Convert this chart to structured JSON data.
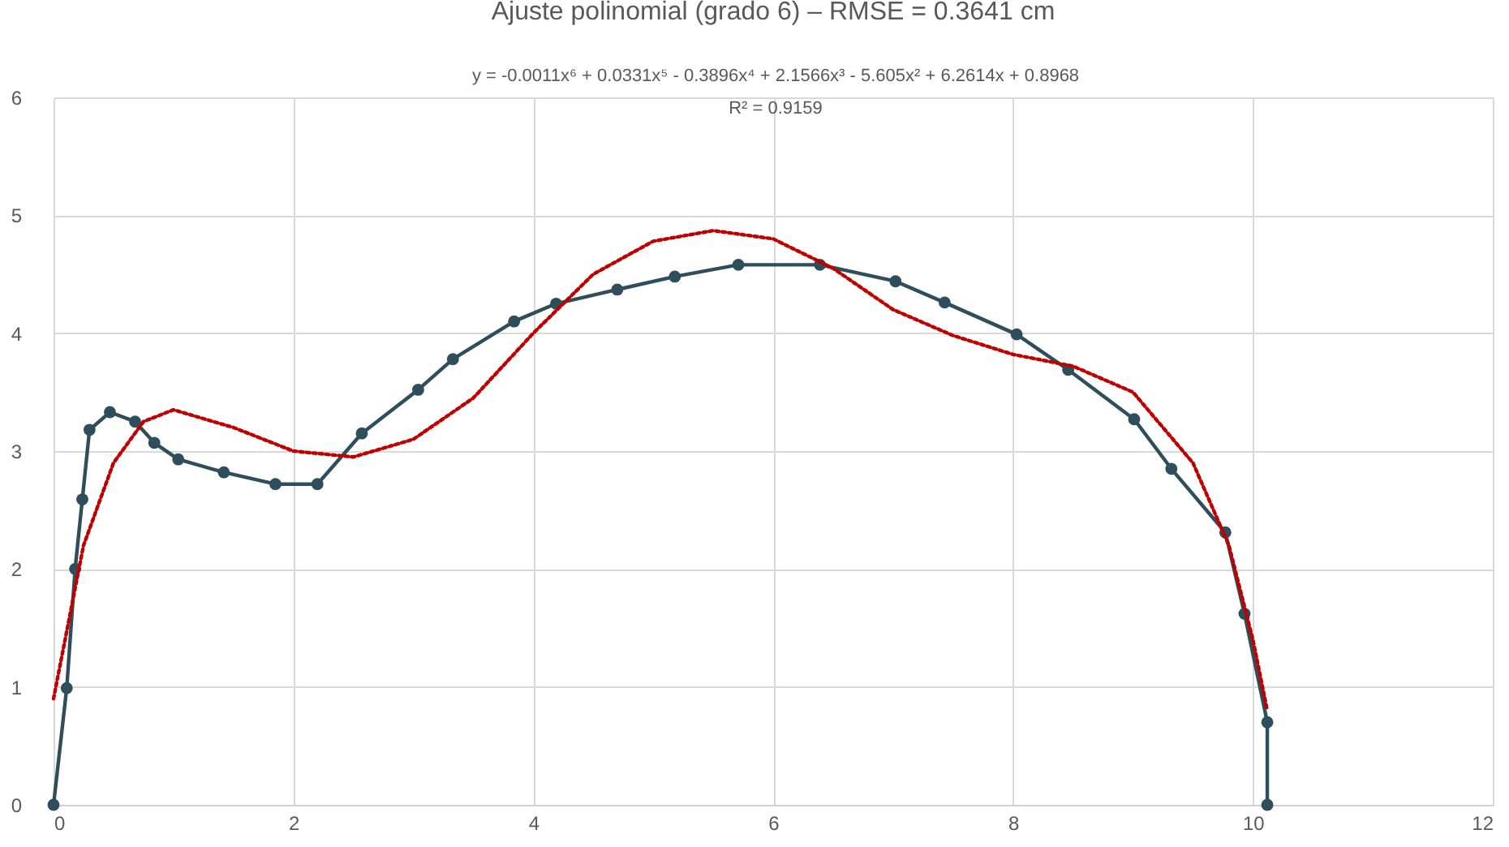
{
  "chart_data": {
    "type": "line",
    "title": "Ajuste polinomial (grado 6) – RMSE = 0.3641 cm",
    "annotations": [
      "y = -0.0011x⁶ + 0.0331x⁵ - 0.3896x⁴ + 2.1566x³ - 5.605x² + 6.2614x + 0.8968",
      "R² = 0.9159"
    ],
    "xlim": [
      0,
      12
    ],
    "xticks": [
      0,
      2,
      4,
      6,
      8,
      10,
      12
    ],
    "ylim": [
      0,
      6
    ],
    "yticks": [
      0,
      1,
      2,
      3,
      4,
      5,
      6
    ],
    "grid": true,
    "series": [
      {
        "color": "#2f4e5b",
        "marker": "circle",
        "line_style": "solid",
        "x": [
          0,
          0.11,
          0.18,
          0.24,
          0.3,
          0.47,
          0.68,
          0.84,
          1.04,
          1.42,
          1.85,
          2.2,
          2.57,
          3.04,
          3.33,
          3.84,
          4.19,
          4.7,
          5.18,
          5.71,
          6.39,
          7.02,
          7.43,
          8.03,
          8.46,
          9.01,
          9.32,
          9.77,
          9.93,
          10.12,
          10.12
        ],
        "values": [
          0,
          0.99,
          2.0,
          2.59,
          3.18,
          3.33,
          3.25,
          3.07,
          2.93,
          2.82,
          2.72,
          2.72,
          3.15,
          3.52,
          3.78,
          4.1,
          4.25,
          4.37,
          4.48,
          4.58,
          4.58,
          4.44,
          4.26,
          3.99,
          3.69,
          3.27,
          2.85,
          2.31,
          1.62,
          0.7,
          0
        ]
      },
      {
        "color": "#c00000",
        "marker": "none",
        "line_style": "dotted",
        "x": [
          0,
          0.25,
          0.5,
          0.75,
          1.0,
          1.5,
          2.0,
          2.5,
          3.0,
          3.5,
          4.0,
          4.5,
          5.0,
          5.5,
          6.0,
          6.5,
          7.0,
          7.5,
          8.0,
          8.5,
          9.0,
          9.5,
          9.8,
          10.0,
          10.12
        ],
        "values": [
          0.9,
          2.2,
          2.9,
          3.25,
          3.35,
          3.2,
          3.0,
          2.95,
          3.1,
          3.45,
          4.0,
          4.5,
          4.78,
          4.87,
          4.8,
          4.55,
          4.2,
          3.98,
          3.82,
          3.72,
          3.5,
          2.9,
          2.2,
          1.4,
          0.8
        ]
      }
    ]
  }
}
